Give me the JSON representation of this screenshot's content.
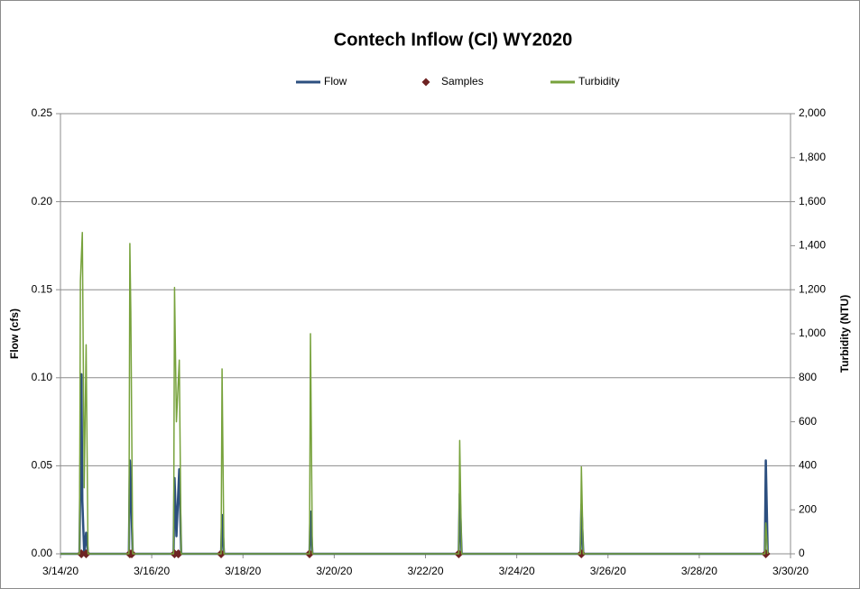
{
  "chart_data": {
    "type": "line",
    "title": "Contech Inflow (CI) WY2020",
    "ylabel": "Flow (cfs)",
    "y2label": "Turbidity (NTU)",
    "x": [
      "2020-03-14T00:00",
      "2020-03-14T10:00",
      "2020-03-14T10:30",
      "2020-03-14T11:00",
      "2020-03-14T11:30",
      "2020-03-14T12:30",
      "2020-03-14T13:30",
      "2020-03-14T14:30",
      "2020-03-15T12:00",
      "2020-03-15T12:30",
      "2020-03-15T13:00",
      "2020-03-15T14:00",
      "2020-03-16T11:30",
      "2020-03-16T12:00",
      "2020-03-16T13:00",
      "2020-03-16T14:30",
      "2020-03-16T15:30",
      "2020-03-17T12:30",
      "2020-03-17T13:00",
      "2020-03-17T14:00",
      "2020-03-19T11:00",
      "2020-03-19T11:30",
      "2020-03-19T12:30",
      "2020-03-22T17:30",
      "2020-03-22T18:00",
      "2020-03-22T19:00",
      "2020-03-25T09:30",
      "2020-03-25T10:00",
      "2020-03-25T11:00",
      "2020-03-29T10:30",
      "2020-03-29T11:00",
      "2020-03-29T12:00"
    ],
    "series": [
      {
        "name": "Flow",
        "color": "#2c4f7f",
        "axis": "y",
        "values": [
          0,
          0,
          0.05,
          0.102,
          0.03,
          0,
          0.012,
          0,
          0,
          0.053,
          0.04,
          0,
          0,
          0.043,
          0.01,
          0.048,
          0,
          0,
          0.022,
          0,
          0,
          0.024,
          0,
          0,
          0.034,
          0,
          0,
          0.028,
          0,
          0,
          0.053,
          0
        ]
      },
      {
        "name": "Samples",
        "color": "#6e2323",
        "axis": "y",
        "marker": "diamond",
        "x": [
          "2020-03-14T11:00",
          "2020-03-14T13:30",
          "2020-03-15T12:30",
          "2020-03-15T13:30",
          "2020-03-16T12:00",
          "2020-03-16T14:00",
          "2020-03-17T12:30",
          "2020-03-19T11:00",
          "2020-03-22T17:30",
          "2020-03-25T10:00",
          "2020-03-29T11:00"
        ],
        "values": [
          0,
          0,
          0,
          0,
          0,
          0,
          0,
          0,
          0,
          0,
          0
        ]
      },
      {
        "name": "Turbidity",
        "color": "#77a23c",
        "axis": "y2",
        "values": [
          0,
          0,
          1240,
          1350,
          1460,
          300,
          950,
          0,
          0,
          1410,
          1100,
          0,
          0,
          1210,
          600,
          880,
          0,
          0,
          840,
          0,
          0,
          1000,
          0,
          0,
          515,
          0,
          0,
          395,
          0,
          0,
          140,
          0
        ]
      }
    ],
    "xlim": [
      "2020-03-14T00:00",
      "2020-03-30T00:00"
    ],
    "xticks": [
      {
        "value": "2020-03-14T00:00",
        "label": "3/14/20"
      },
      {
        "value": "2020-03-16T00:00",
        "label": "3/16/20"
      },
      {
        "value": "2020-03-18T00:00",
        "label": "3/18/20"
      },
      {
        "value": "2020-03-20T00:00",
        "label": "3/20/20"
      },
      {
        "value": "2020-03-22T00:00",
        "label": "3/22/20"
      },
      {
        "value": "2020-03-24T00:00",
        "label": "3/24/20"
      },
      {
        "value": "2020-03-26T00:00",
        "label": "3/26/20"
      },
      {
        "value": "2020-03-28T00:00",
        "label": "3/28/20"
      },
      {
        "value": "2020-03-30T00:00",
        "label": "3/30/20"
      }
    ],
    "ylim": [
      0,
      0.25
    ],
    "yticks": [
      {
        "value": 0,
        "label": "0.00"
      },
      {
        "value": 0.05,
        "label": "0.05"
      },
      {
        "value": 0.1,
        "label": "0.10"
      },
      {
        "value": 0.15,
        "label": "0.15"
      },
      {
        "value": 0.2,
        "label": "0.20"
      },
      {
        "value": 0.25,
        "label": "0.25"
      }
    ],
    "y2lim": [
      0,
      2000
    ],
    "y2ticks": [
      0,
      200,
      400,
      600,
      800,
      {
        "value": 1000,
        "label": "1,000"
      },
      {
        "value": 1200,
        "label": "1,200"
      },
      {
        "value": 1400,
        "label": "1,400"
      },
      {
        "value": 1600,
        "label": "1,600"
      },
      {
        "value": 1800,
        "label": "1,800"
      },
      {
        "value": 2000,
        "label": "2,000"
      }
    ],
    "grid": true,
    "legend": "top"
  }
}
